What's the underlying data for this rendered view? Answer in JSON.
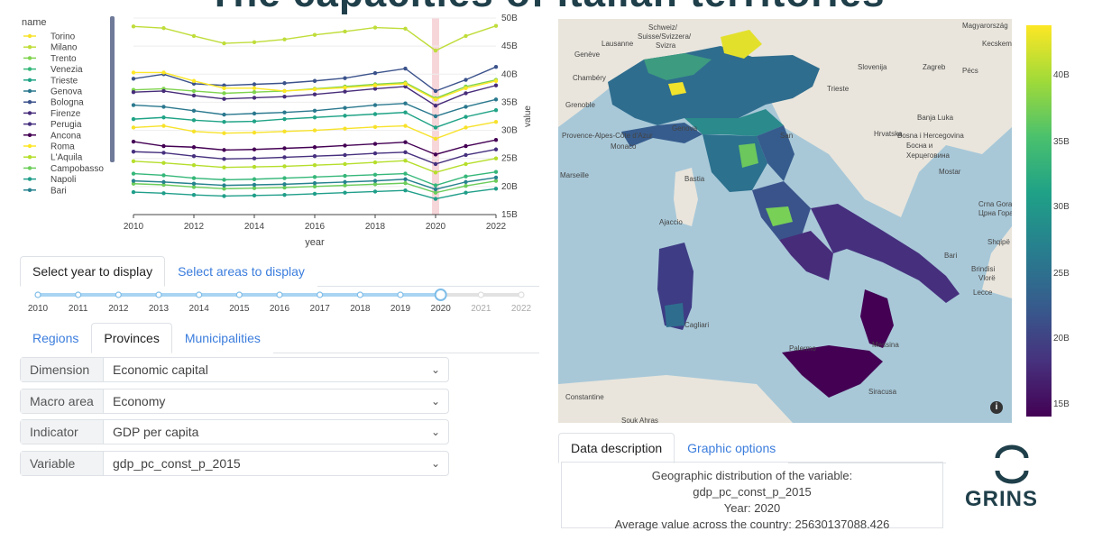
{
  "page": {
    "title": "The capacities of Italian territories"
  },
  "chart_data": {
    "type": "line",
    "x": [
      2010,
      2011,
      2012,
      2013,
      2014,
      2015,
      2016,
      2017,
      2018,
      2019,
      2020,
      2021,
      2022
    ],
    "xlabel": "year",
    "ylabel": "value",
    "xticks": [
      "2010",
      "2012",
      "2014",
      "2016",
      "2018",
      "2020",
      "2022"
    ],
    "yticks": [
      "15B",
      "20B",
      "25B",
      "30B",
      "35B",
      "40B",
      "45B",
      "50B"
    ],
    "ylim": [
      15,
      50
    ],
    "highlight_x": 2020,
    "legend_title": "name",
    "legend_position": "left",
    "series": [
      {
        "name": "Torino",
        "color": "#f7e22b",
        "values": [
          30.5,
          30.8,
          29.8,
          29.5,
          29.6,
          29.8,
          30.0,
          30.3,
          30.6,
          30.8,
          28.5,
          30.5,
          31.5
        ]
      },
      {
        "name": "Milano",
        "color": "#bfdd3a",
        "values": [
          48.5,
          48.2,
          46.8,
          45.5,
          45.7,
          46.2,
          47.0,
          47.6,
          48.3,
          48.1,
          44.2,
          46.8,
          48.6
        ]
      },
      {
        "name": "Trento",
        "color": "#7fd34e",
        "values": [
          37.2,
          37.4,
          37.0,
          36.6,
          36.8,
          37.0,
          37.4,
          37.8,
          38.2,
          38.5,
          35.7,
          37.8,
          39.0
        ]
      },
      {
        "name": "Venezia",
        "color": "#35b779",
        "values": [
          22.3,
          22.0,
          21.5,
          21.2,
          21.3,
          21.5,
          21.7,
          21.9,
          22.1,
          22.3,
          20.2,
          21.8,
          22.6
        ]
      },
      {
        "name": "Trieste",
        "color": "#20a386",
        "values": [
          32.0,
          32.3,
          31.8,
          31.5,
          31.6,
          32.0,
          32.3,
          32.6,
          32.9,
          33.2,
          30.5,
          32.4,
          33.6
        ]
      },
      {
        "name": "Genova",
        "color": "#2a788e",
        "values": [
          34.5,
          34.2,
          33.5,
          32.8,
          33.0,
          33.2,
          33.5,
          34.0,
          34.5,
          34.8,
          32.5,
          34.2,
          35.5
        ]
      },
      {
        "name": "Bologna",
        "color": "#3b528b",
        "values": [
          39.2,
          40.0,
          38.3,
          38.0,
          38.2,
          38.4,
          38.8,
          39.3,
          40.2,
          41.0,
          37.0,
          39.0,
          41.3
        ]
      },
      {
        "name": "Firenze",
        "color": "#472c7a",
        "values": [
          36.8,
          37.0,
          36.2,
          35.6,
          35.8,
          36.0,
          36.4,
          36.9,
          37.4,
          37.8,
          34.4,
          36.6,
          38.0
        ]
      },
      {
        "name": "Perugia",
        "color": "#46307e",
        "values": [
          26.2,
          26.0,
          25.4,
          24.9,
          25.0,
          25.2,
          25.4,
          25.6,
          25.9,
          26.1,
          24.0,
          25.6,
          26.6
        ]
      },
      {
        "name": "Ancona",
        "color": "#440154",
        "values": [
          28.0,
          27.2,
          27.0,
          26.5,
          26.6,
          26.8,
          27.0,
          27.3,
          27.6,
          27.9,
          25.7,
          27.2,
          28.3
        ]
      },
      {
        "name": "Roma",
        "color": "#fde725",
        "values": [
          40.3,
          40.3,
          38.8,
          37.5,
          37.5,
          37.0,
          37.3,
          37.6,
          38.0,
          38.3,
          35.5,
          37.5,
          38.8
        ]
      },
      {
        "name": "L'Aquila",
        "color": "#b5de2b",
        "values": [
          24.5,
          24.2,
          23.8,
          23.4,
          23.5,
          23.6,
          23.8,
          24.0,
          24.3,
          24.6,
          22.5,
          24.0,
          25.0
        ]
      },
      {
        "name": "Campobasso",
        "color": "#6ccd5a",
        "values": [
          20.5,
          20.3,
          19.9,
          19.6,
          19.7,
          19.8,
          20.0,
          20.2,
          20.4,
          20.6,
          18.9,
          20.1,
          21.0
        ]
      },
      {
        "name": "Napoli",
        "color": "#1f9e89",
        "values": [
          19.0,
          18.8,
          18.5,
          18.3,
          18.4,
          18.5,
          18.7,
          18.9,
          19.1,
          19.3,
          17.8,
          18.9,
          19.6
        ]
      },
      {
        "name": "Bari",
        "color": "#26828e",
        "values": [
          21.0,
          20.8,
          20.5,
          20.2,
          20.3,
          20.4,
          20.6,
          20.8,
          21.0,
          21.3,
          19.5,
          20.8,
          21.6
        ]
      }
    ]
  },
  "year_tabs": [
    {
      "label": "Select year to display",
      "active": true
    },
    {
      "label": "Select areas to display",
      "active": false
    }
  ],
  "year_slider": {
    "years": [
      "2010",
      "2011",
      "2012",
      "2013",
      "2014",
      "2015",
      "2016",
      "2017",
      "2018",
      "2019",
      "2020",
      "2021",
      "2022"
    ],
    "selected": "2020"
  },
  "level_tabs": [
    {
      "label": "Regions",
      "active": false
    },
    {
      "label": "Provinces",
      "active": true
    },
    {
      "label": "Municipalities",
      "active": false
    }
  ],
  "filters": [
    {
      "label": "Dimension",
      "value": "Economic capital"
    },
    {
      "label": "Macro area",
      "value": "Economy"
    },
    {
      "label": "Indicator",
      "value": "GDP per capita"
    },
    {
      "label": "Variable",
      "value": "gdp_pc_const_p_2015"
    }
  ],
  "map": {
    "place_labels": [
      "Schweiz/",
      "Suisse/Svizzera/",
      "Svizra",
      "Lausanne",
      "Genève",
      "Chambéry",
      "Grenoble",
      "Slovenija",
      "Zagreb",
      "Trieste",
      "Magyarország",
      "Kecskem",
      "Pécs",
      "Hrvatska",
      "Banja Luka",
      "Bosna i Hercegovina",
      "Босна и",
      "Херцеговина",
      "Mostar",
      "Crna Gora /",
      "Црна Гора",
      "Bari",
      "Brindisi",
      "Genova",
      "San",
      "Bastia",
      "Ajaccio",
      "Palermo",
      "Constantine",
      "Souk Ahras",
      "Provence-Alpes-Côte d'Azur",
      "Monaco",
      "Marseille",
      "Shqipë",
      "Vlorë",
      "Lecce",
      "Messina",
      "Siracusa",
      "Cagliari"
    ],
    "info_icon": "info-icon"
  },
  "colorbar": {
    "ticks": [
      "40B",
      "35B",
      "30B",
      "25B",
      "20B",
      "15B"
    ],
    "colors": [
      "#fde725",
      "#a0da39",
      "#4ac16d",
      "#1fa187",
      "#277f8e",
      "#365c8d",
      "#46327e",
      "#440154"
    ]
  },
  "desc_tabs": [
    {
      "label": "Data description",
      "active": true
    },
    {
      "label": "Graphic options",
      "active": false
    }
  ],
  "description": {
    "line1": "Geographic distribution of the variable:",
    "line2": "gdp_pc_const_p_2015",
    "line3": "Year: 2020",
    "line4": "Average value across the country: 25630137088.426"
  },
  "logo": {
    "text": "GRINS"
  }
}
